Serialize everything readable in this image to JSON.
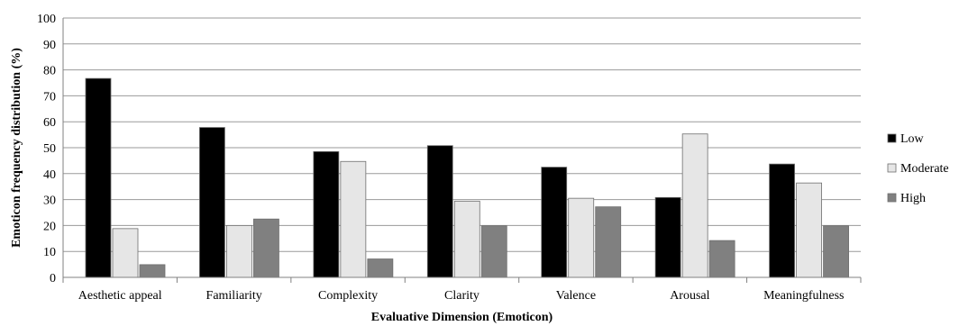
{
  "chart_data": {
    "type": "bar",
    "title": "",
    "xlabel": "Evaluative Dimension (Emoticon)",
    "ylabel": "Emoticon frequency distribution (%)",
    "ylim": [
      0,
      100
    ],
    "yticks": [
      0,
      10,
      20,
      30,
      40,
      50,
      60,
      70,
      80,
      90,
      100
    ],
    "grid": true,
    "legend_position": "right",
    "categories": [
      "Aesthetic appeal",
      "Familiarity",
      "Complexity",
      "Clarity",
      "Valence",
      "Arousal",
      "Meaningfulness"
    ],
    "series": [
      {
        "name": "Low",
        "color": "#000000",
        "values": [
          76.7,
          57.8,
          48.5,
          50.8,
          42.5,
          30.8,
          43.7
        ]
      },
      {
        "name": "Moderate",
        "color": "#e6e6e6",
        "values": [
          18.8,
          20.0,
          44.7,
          29.4,
          30.5,
          55.3,
          36.4
        ]
      },
      {
        "name": "High",
        "color": "#808080",
        "values": [
          4.9,
          22.5,
          7.1,
          19.9,
          27.2,
          14.2,
          19.9
        ]
      }
    ]
  }
}
